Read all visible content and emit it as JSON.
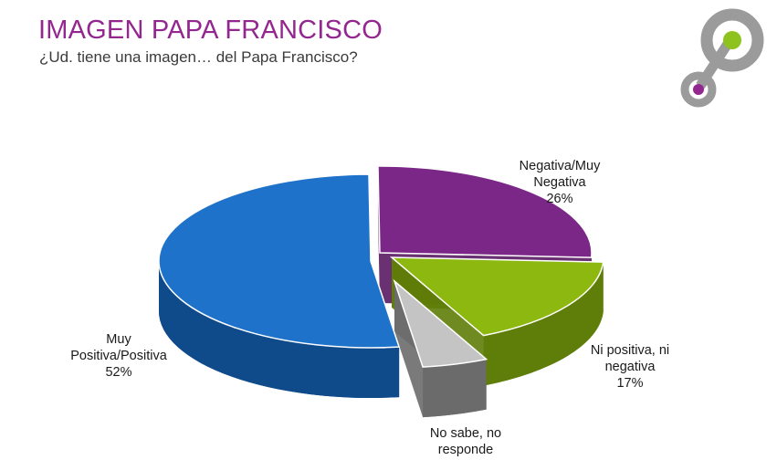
{
  "header": {
    "title": "IMAGEN PAPA FRANCISCO",
    "subtitle": "¿Ud. tiene una imagen… del Papa Francisco?"
  },
  "logo": {
    "icon": "linked-circles-logo-icon",
    "ring_color": "#9b9b9b",
    "dot_green": "#8dc21f",
    "dot_purple": "#93278f"
  },
  "colors": {
    "title": "#93278f"
  },
  "chart_data": {
    "type": "pie",
    "style": "3d-exploded",
    "title": "",
    "slices": [
      {
        "label_lines": [
          "Negativa/Muy",
          "Negativa"
        ],
        "value": 26,
        "value_label": "26%",
        "color": "#7b2787",
        "side_color": "#5a1b63"
      },
      {
        "label_lines": [
          "Ni positiva, ni",
          "negativa"
        ],
        "value": 17,
        "value_label": "17%",
        "color": "#8cb80f",
        "side_color": "#5f7d09"
      },
      {
        "label_lines": [
          "No sabe, no",
          "responde"
        ],
        "value": 5,
        "value_label": "",
        "color": "#c4c4c4",
        "side_color": "#6b6b6b"
      },
      {
        "label_lines": [
          "Muy",
          "Positiva/Positiva"
        ],
        "value": 52,
        "value_label": "52%",
        "color": "#1f72c9",
        "side_color": "#0f4a8a"
      }
    ]
  }
}
